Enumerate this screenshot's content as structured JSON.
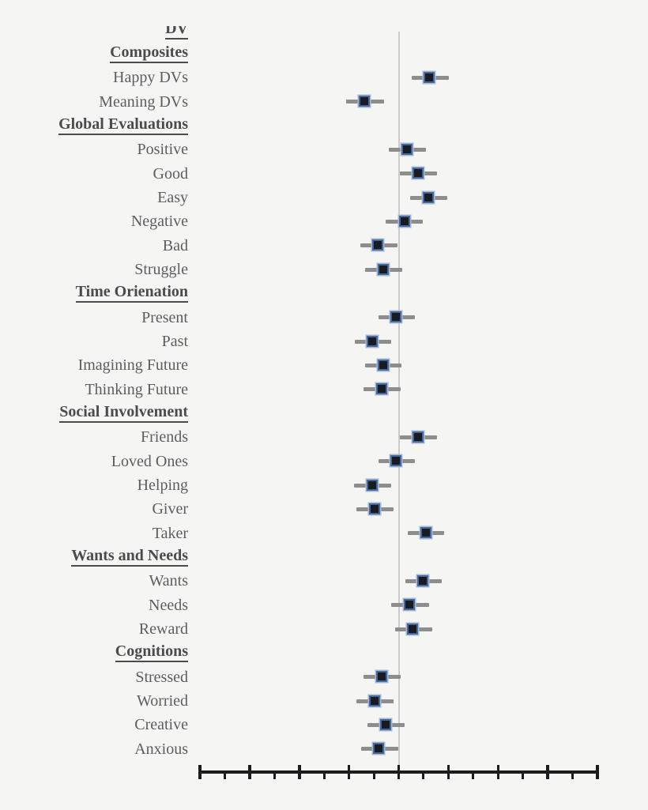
{
  "figure": {
    "kind": "forest-plot",
    "note_colors": {
      "background": "#f5f5f4",
      "label_text": "#5d5d5f",
      "header_text": "#4b4b4d",
      "marker_fill": "#1a1a21",
      "marker_border": "#44689b",
      "marker_halo": "#a3b8d4",
      "error_bar": "#8d8d8d",
      "reference_line": "#cccccc",
      "axis": "#1c1c1c"
    }
  },
  "chart_data": {
    "type": "scatter",
    "subtype": "forest-plot-with-error-bars",
    "title": "",
    "xlabel": "",
    "ylabel": "",
    "axis": {
      "x_min": -4,
      "x_max": 4,
      "major_tick_step": 1,
      "minor_tick_step": 0.5,
      "tick_labels_visible": false,
      "reference_line_x": 0,
      "units_note": "No numeric tick labels are shown in the figure; values are estimated in units of one major tick interval with 0 at the vertical reference line."
    },
    "rows": [
      {
        "label": "DV",
        "kind": "header",
        "clipped_at_top": true
      },
      {
        "label": "Composites",
        "kind": "header"
      },
      {
        "label": "Happy DVs",
        "kind": "item",
        "value": 0.62,
        "ci_low": 0.26,
        "ci_high": 1.01
      },
      {
        "label": "Meaning DVs",
        "kind": "item",
        "value": -0.69,
        "ci_low": -1.06,
        "ci_high": -0.29
      },
      {
        "label": "Global Evaluations",
        "kind": "header"
      },
      {
        "label": "Positive",
        "kind": "item",
        "value": 0.18,
        "ci_low": -0.2,
        "ci_high": 0.55
      },
      {
        "label": "Good",
        "kind": "item",
        "value": 0.39,
        "ci_low": 0.03,
        "ci_high": 0.77
      },
      {
        "label": "Easy",
        "kind": "item",
        "value": 0.6,
        "ci_low": 0.23,
        "ci_high": 0.98
      },
      {
        "label": "Negative",
        "kind": "item",
        "value": 0.12,
        "ci_low": -0.26,
        "ci_high": 0.48
      },
      {
        "label": "Bad",
        "kind": "item",
        "value": -0.41,
        "ci_low": -0.77,
        "ci_high": -0.02
      },
      {
        "label": "Struggle",
        "kind": "item",
        "value": -0.31,
        "ci_low": -0.68,
        "ci_high": 0.07
      },
      {
        "label": "Time Orienation",
        "kind": "header"
      },
      {
        "label": "Present",
        "kind": "item",
        "value": -0.04,
        "ci_low": -0.41,
        "ci_high": 0.33
      },
      {
        "label": "Past",
        "kind": "item",
        "value": -0.52,
        "ci_low": -0.88,
        "ci_high": -0.15
      },
      {
        "label": "Imagining Future",
        "kind": "item",
        "value": -0.31,
        "ci_low": -0.68,
        "ci_high": 0.06
      },
      {
        "label": "Thinking Future",
        "kind": "item",
        "value": -0.34,
        "ci_low": -0.71,
        "ci_high": 0.04
      },
      {
        "label": "Social Involvement",
        "kind": "header"
      },
      {
        "label": "Friends",
        "kind": "item",
        "value": 0.39,
        "ci_low": 0.02,
        "ci_high": 0.77
      },
      {
        "label": "Loved Ones",
        "kind": "item",
        "value": -0.04,
        "ci_low": -0.41,
        "ci_high": 0.33
      },
      {
        "label": "Helping",
        "kind": "item",
        "value": -0.52,
        "ci_low": -0.9,
        "ci_high": -0.15
      },
      {
        "label": "Giver",
        "kind": "item",
        "value": -0.48,
        "ci_low": -0.85,
        "ci_high": -0.1
      },
      {
        "label": "Taker",
        "kind": "item",
        "value": 0.55,
        "ci_low": 0.18,
        "ci_high": 0.91
      },
      {
        "label": "Wants and Needs",
        "kind": "header"
      },
      {
        "label": "Wants",
        "kind": "item",
        "value": 0.5,
        "ci_low": 0.14,
        "ci_high": 0.87
      },
      {
        "label": "Needs",
        "kind": "item",
        "value": 0.23,
        "ci_low": -0.15,
        "ci_high": 0.61
      },
      {
        "label": "Reward",
        "kind": "item",
        "value": 0.29,
        "ci_low": -0.07,
        "ci_high": 0.68
      },
      {
        "label": "Cognitions",
        "kind": "header"
      },
      {
        "label": "Stressed",
        "kind": "item",
        "value": -0.34,
        "ci_low": -0.71,
        "ci_high": 0.04
      },
      {
        "label": "Worried",
        "kind": "item",
        "value": -0.48,
        "ci_low": -0.85,
        "ci_high": -0.1
      },
      {
        "label": "Creative",
        "kind": "item",
        "value": -0.26,
        "ci_low": -0.63,
        "ci_high": 0.12
      },
      {
        "label": "Anxious",
        "kind": "item",
        "value": -0.39,
        "ci_low": -0.76,
        "ci_high": -0.01
      }
    ]
  }
}
